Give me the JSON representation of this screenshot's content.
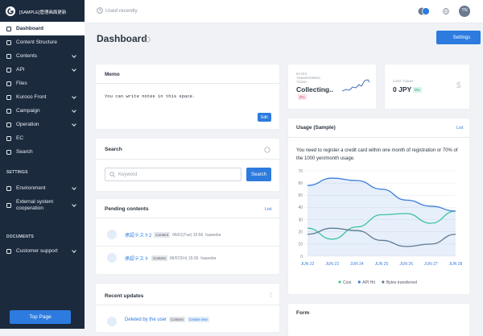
{
  "sidebar": {
    "brand": "[SAMPLE]管理画面更新",
    "menu": [
      {
        "label": "Dashboard",
        "active": true
      },
      {
        "label": "Content Structure"
      },
      {
        "label": "Contents",
        "has_submenu": true
      },
      {
        "label": "API",
        "has_submenu": true
      },
      {
        "label": "Files"
      },
      {
        "label": "Kuroco Front",
        "has_submenu": true
      },
      {
        "label": "Campaign",
        "has_submenu": true
      },
      {
        "label": "Operation",
        "has_submenu": true
      },
      {
        "label": "EC"
      },
      {
        "label": "Search"
      }
    ],
    "settings_heading": "SETTINGS",
    "settings_menu": [
      {
        "label": "Environment",
        "has_submenu": true
      },
      {
        "label": "External system cooperation",
        "has_submenu": true
      }
    ],
    "documents_heading": "DOCUMENTS",
    "documents_menu": [
      {
        "label": "Customer support",
        "has_submenu": true
      }
    ],
    "top_page": "Top Page"
  },
  "topbar": {
    "recent": "Used recently",
    "user": "TN"
  },
  "page": {
    "title": "Dashboard",
    "settings": "Settings"
  },
  "memo": {
    "title": "Memo",
    "text": "You can write notes in this space.",
    "edit": "Edit"
  },
  "search": {
    "title": "Search",
    "placeholder": "Keyword",
    "button": "Search"
  },
  "pending": {
    "title": "Pending contents",
    "link": "List",
    "items": [
      {
        "title": "承認テスト2",
        "tag": "Content",
        "date": "06/01(Tue) 15:56",
        "user": "haseebe"
      },
      {
        "title": "承認テスト",
        "tag": "Content",
        "date": "06/07(Fri) 15:36",
        "user": "haseebe"
      }
    ]
  },
  "recent": {
    "title": "Recent updates",
    "item": {
      "title": "Deleted by the user",
      "tag": "Content",
      "tag2": "Create new"
    }
  },
  "bytes": {
    "label": "BYTES TRANSFERRED TODAY",
    "value": "Collecting..",
    "badge": "0%"
  },
  "cost": {
    "label": "COST TODAY",
    "value": "0 JPY",
    "badge": "0%"
  },
  "usage": {
    "title": "Usage (Sample)",
    "link": "List",
    "notice": "You need to register a credit card within one month of registration or 70% of the 1000 yen/month usage.",
    "chart": {
      "type": "line",
      "categories": [
        "JUN 22",
        "JUN 23",
        "JUN 24",
        "JUN 25",
        "JUN 26",
        "JUN 27",
        "JUN 28"
      ],
      "ylim": [
        0,
        70
      ],
      "yticks": [
        0,
        10,
        20,
        30,
        40,
        50,
        60,
        70
      ],
      "grid": true,
      "series": [
        {
          "name": "Cost",
          "color": "#3dcf92",
          "values": [
            23,
            14,
            24,
            34,
            35,
            27,
            37
          ]
        },
        {
          "name": "API Hit",
          "color": "#3b7ddd",
          "fill": true,
          "values": [
            58,
            64,
            62,
            55,
            46,
            41,
            37
          ]
        },
        {
          "name": "Bytes transferred",
          "color": "#5f7a92",
          "values": [
            18,
            23,
            21,
            13,
            8,
            10,
            18
          ]
        }
      ]
    }
  },
  "form": {
    "title": "Form"
  }
}
